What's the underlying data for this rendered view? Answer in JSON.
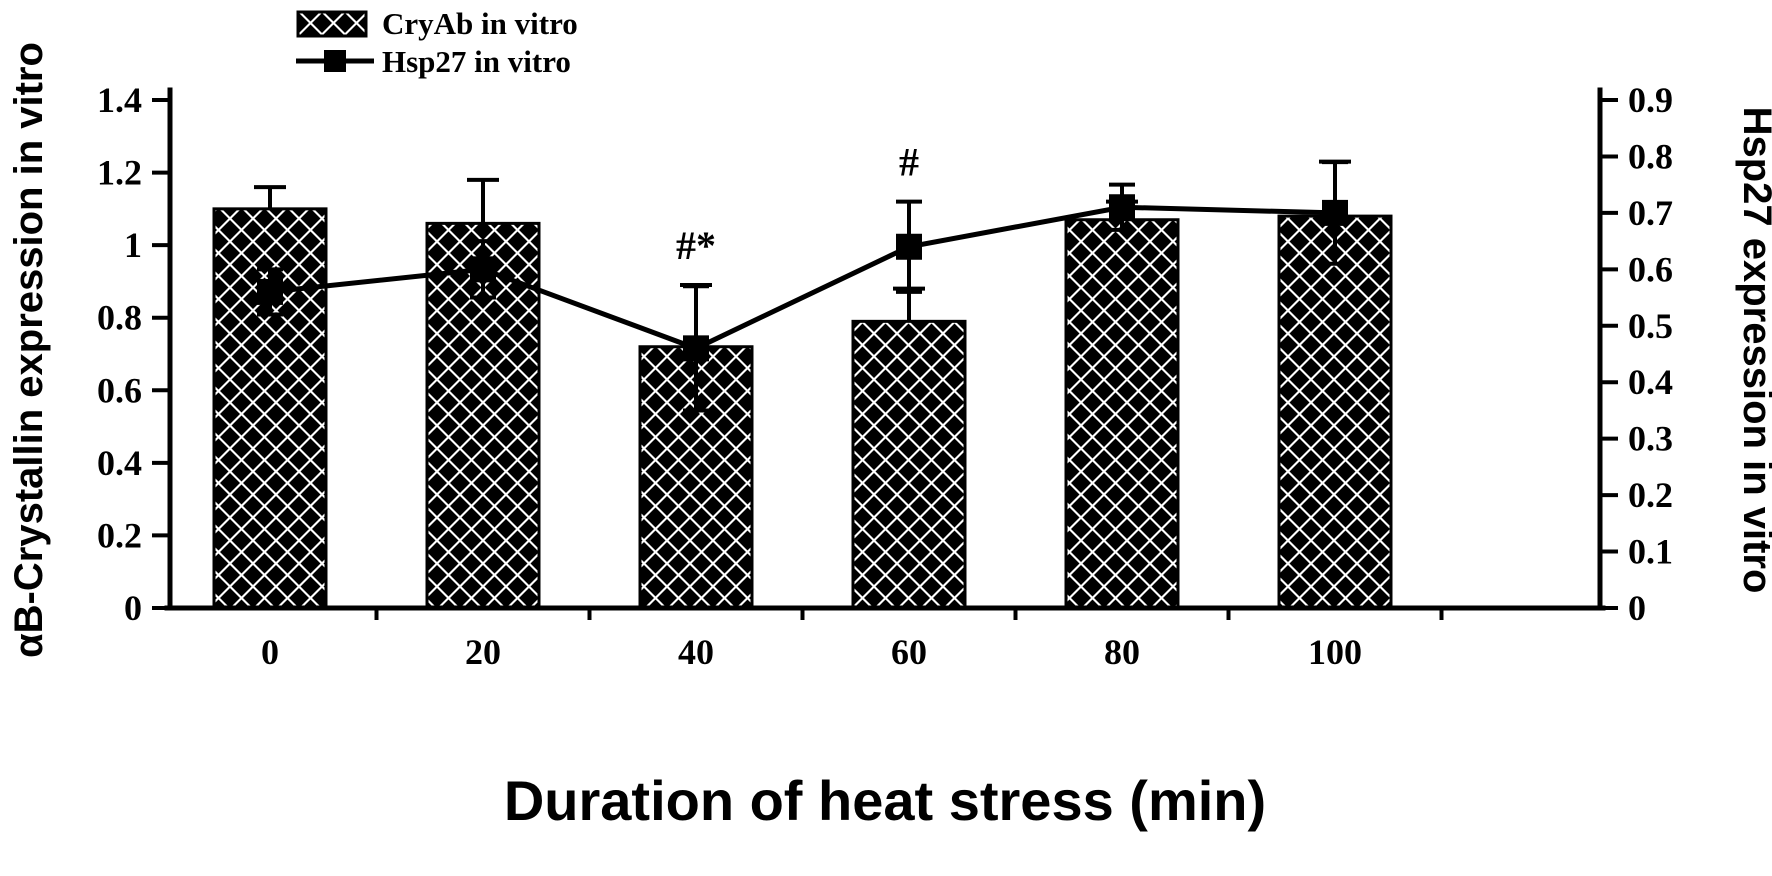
{
  "figure": {
    "background": "#ffffff",
    "ink": "#000000"
  },
  "chart_data": {
    "type": "bar-line-combo",
    "categories": [
      "0",
      "20",
      "40",
      "60",
      "80",
      "100"
    ],
    "x_axis": {
      "title": "Duration of heat stress (min)"
    },
    "left_axis": {
      "title": "αB-Crystallin expression in vitro",
      "min": 0,
      "max": 1.4,
      "tick_step": 0.2,
      "tick_labels": [
        "0",
        "0.2",
        "0.4",
        "0.6",
        "0.8",
        "1",
        "1.2",
        "1.4"
      ]
    },
    "right_axis": {
      "title": "Hsp27 expression in vitro",
      "min": 0,
      "max": 0.9,
      "tick_step": 0.1,
      "tick_labels": [
        "0",
        "0.1",
        "0.2",
        "0.3",
        "0.4",
        "0.5",
        "0.6",
        "0.7",
        "0.8",
        "0.9"
      ]
    },
    "series": [
      {
        "name": "CryAb in vitro",
        "type": "bar",
        "axis": "left",
        "pattern": "diamond-check",
        "values": [
          1.1,
          1.06,
          0.72,
          0.79,
          1.07,
          1.08
        ],
        "errors": [
          0.06,
          0.12,
          0.17,
          0.09,
          0.05,
          0.15
        ]
      },
      {
        "name": "Hsp27 in vitro",
        "type": "line",
        "axis": "right",
        "marker": "square",
        "values": [
          0.56,
          0.6,
          0.46,
          0.64,
          0.71,
          0.7
        ],
        "errors": [
          0.04,
          0.05,
          0.11,
          0.08,
          0.04,
          0.09
        ]
      }
    ],
    "annotations": [
      {
        "text": "#*",
        "category_index": 2,
        "series": "CryAb in vitro"
      },
      {
        "text": "#",
        "category_index": 3,
        "series": "Hsp27 in vitro"
      }
    ],
    "legend": {
      "position": "top-left",
      "entries": [
        "CryAb in vitro",
        "Hsp27 in vitro"
      ]
    }
  }
}
